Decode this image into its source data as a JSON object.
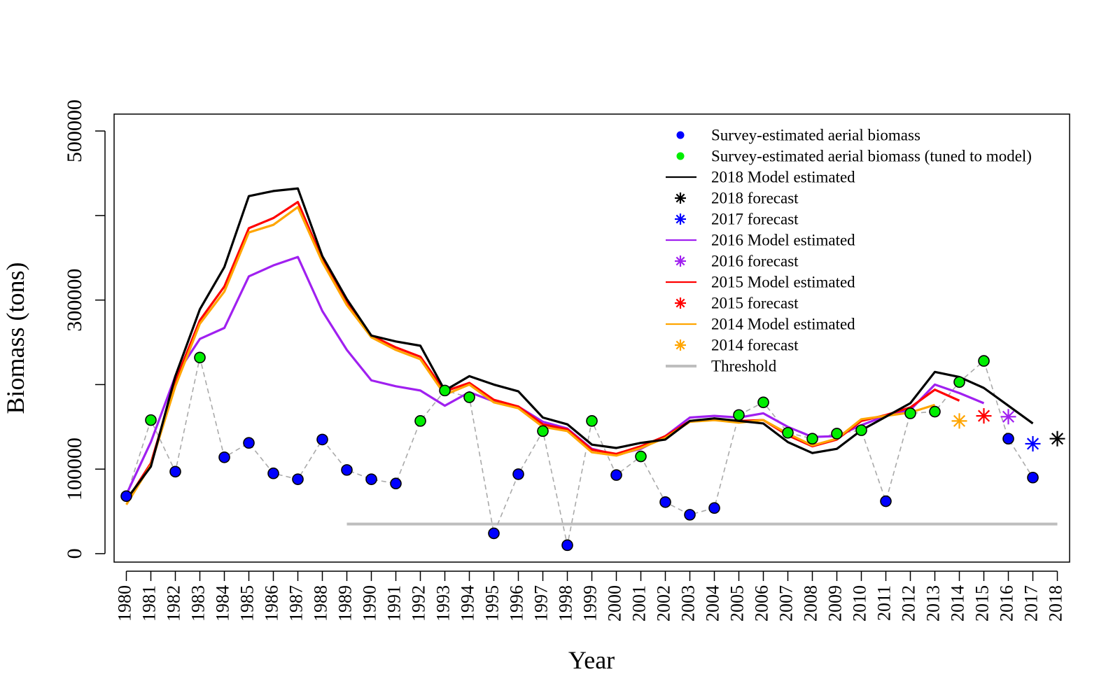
{
  "chart_data": {
    "type": "line",
    "title": "",
    "xlabel": "Year",
    "ylabel": "Biomass (tons)",
    "xlim": [
      1979.5,
      2018.5
    ],
    "ylim": [
      -10000,
      520000
    ],
    "x_ticks": [
      1980,
      1981,
      1982,
      1983,
      1984,
      1985,
      1986,
      1987,
      1988,
      1989,
      1990,
      1991,
      1992,
      1993,
      1994,
      1995,
      1996,
      1997,
      1998,
      1999,
      2000,
      2001,
      2002,
      2003,
      2004,
      2005,
      2006,
      2007,
      2008,
      2009,
      2010,
      2011,
      2012,
      2013,
      2014,
      2015,
      2016,
      2017,
      2018
    ],
    "y_ticks": [
      0,
      100000,
      200000,
      300000,
      400000,
      500000
    ],
    "y_tick_labels": [
      "0",
      "100000",
      "",
      "300000",
      "",
      "500000"
    ],
    "grid": false,
    "legend_position": "top-right",
    "legend": [
      {
        "label": "Survey-estimated aerial biomass",
        "kind": "point",
        "color": "#0000ff"
      },
      {
        "label": "Survey-estimated aerial biomass (tuned to model)",
        "kind": "point",
        "color": "#00ee00"
      },
      {
        "label": "2018 Model estimated",
        "kind": "line",
        "color": "#000000"
      },
      {
        "label": "2018 forecast",
        "kind": "star",
        "color": "#000000"
      },
      {
        "label": "2017 forecast",
        "kind": "star",
        "color": "#0000ff"
      },
      {
        "label": "2016 Model estimated",
        "kind": "line",
        "color": "#a020f0"
      },
      {
        "label": "2016 forecast",
        "kind": "star",
        "color": "#a020f0"
      },
      {
        "label": "2015 Model estimated",
        "kind": "line",
        "color": "#ff0000"
      },
      {
        "label": "2015 forecast",
        "kind": "star",
        "color": "#ff0000"
      },
      {
        "label": "2014 Model estimated",
        "kind": "line",
        "color": "#ffa500"
      },
      {
        "label": "2014 forecast",
        "kind": "star",
        "color": "#ffa500"
      },
      {
        "label": "Threshold",
        "kind": "thickline",
        "color": "#bebebe"
      }
    ],
    "survey_points": [
      {
        "x": 1980,
        "y": 68000,
        "tuned": false
      },
      {
        "x": 1981,
        "y": 158000,
        "tuned": true
      },
      {
        "x": 1982,
        "y": 97000,
        "tuned": false
      },
      {
        "x": 1983,
        "y": 232000,
        "tuned": true
      },
      {
        "x": 1984,
        "y": 114000,
        "tuned": false
      },
      {
        "x": 1985,
        "y": 131000,
        "tuned": false
      },
      {
        "x": 1986,
        "y": 95000,
        "tuned": false
      },
      {
        "x": 1987,
        "y": 88000,
        "tuned": false
      },
      {
        "x": 1988,
        "y": 135000,
        "tuned": false
      },
      {
        "x": 1989,
        "y": 99000,
        "tuned": false
      },
      {
        "x": 1990,
        "y": 88000,
        "tuned": false
      },
      {
        "x": 1991,
        "y": 83000,
        "tuned": false
      },
      {
        "x": 1992,
        "y": 157000,
        "tuned": true
      },
      {
        "x": 1993,
        "y": 193000,
        "tuned": true
      },
      {
        "x": 1994,
        "y": 185000,
        "tuned": true
      },
      {
        "x": 1995,
        "y": 24000,
        "tuned": false
      },
      {
        "x": 1996,
        "y": 94000,
        "tuned": false
      },
      {
        "x": 1997,
        "y": 145000,
        "tuned": true
      },
      {
        "x": 1998,
        "y": 10000,
        "tuned": false
      },
      {
        "x": 1999,
        "y": 157000,
        "tuned": true
      },
      {
        "x": 2000,
        "y": 93000,
        "tuned": false
      },
      {
        "x": 2001,
        "y": 115000,
        "tuned": true
      },
      {
        "x": 2002,
        "y": 61000,
        "tuned": false
      },
      {
        "x": 2003,
        "y": 46000,
        "tuned": false
      },
      {
        "x": 2004,
        "y": 54000,
        "tuned": false
      },
      {
        "x": 2005,
        "y": 164000,
        "tuned": true
      },
      {
        "x": 2006,
        "y": 179000,
        "tuned": true
      },
      {
        "x": 2007,
        "y": 143000,
        "tuned": true
      },
      {
        "x": 2008,
        "y": 136000,
        "tuned": true
      },
      {
        "x": 2009,
        "y": 142000,
        "tuned": true
      },
      {
        "x": 2010,
        "y": 146000,
        "tuned": true
      },
      {
        "x": 2011,
        "y": 62000,
        "tuned": false
      },
      {
        "x": 2012,
        "y": 166000,
        "tuned": true
      },
      {
        "x": 2013,
        "y": 168000,
        "tuned": true
      },
      {
        "x": 2014,
        "y": 203000,
        "tuned": true
      },
      {
        "x": 2015,
        "y": 228000,
        "tuned": true
      },
      {
        "x": 2016,
        "y": 136000,
        "tuned": false
      },
      {
        "x": 2017,
        "y": 90000,
        "tuned": false
      }
    ],
    "threshold": {
      "x_start": 1989,
      "x_end": 2018,
      "y": 35000,
      "color": "#bebebe"
    },
    "series": [
      {
        "name": "2018 Model estimated",
        "color": "#000000",
        "x_start": 1980,
        "values": [
          64000,
          103000,
          210000,
          289000,
          339000,
          423000,
          429000,
          432000,
          352000,
          301000,
          258000,
          251000,
          246000,
          193000,
          210000,
          200000,
          192000,
          161000,
          153000,
          129000,
          125000,
          131000,
          135000,
          157000,
          160000,
          157000,
          154000,
          132000,
          119000,
          124000,
          146000,
          162000,
          178000,
          215000,
          209000,
          196000,
          175000,
          154000
        ]
      },
      {
        "name": "2016 Model estimated",
        "color": "#a020f0",
        "x_start": 1980,
        "values": [
          70000,
          132000,
          210000,
          254000,
          267000,
          328000,
          341000,
          351000,
          287000,
          241000,
          205000,
          198000,
          193000,
          175000,
          191000,
          180000,
          174000,
          156000,
          148000,
          124000,
          117000,
          124000,
          139000,
          161000,
          163000,
          161000,
          166000,
          150000,
          138000,
          139000,
          152000,
          163000,
          170000,
          200000,
          190000,
          178000
        ]
      },
      {
        "name": "2015 Model estimated",
        "color": "#ff0000",
        "x_start": 1980,
        "values": [
          62000,
          107000,
          204000,
          276000,
          316000,
          385000,
          397000,
          416000,
          348000,
          297000,
          258000,
          244000,
          233000,
          192000,
          202000,
          182000,
          174000,
          153000,
          147000,
          123000,
          118000,
          127000,
          139000,
          157000,
          159000,
          157000,
          158000,
          140000,
          127000,
          135000,
          157000,
          164000,
          173000,
          194000,
          181000
        ]
      },
      {
        "name": "2014 Model estimated",
        "color": "#ffa500",
        "x_start": 1980,
        "values": [
          58000,
          105000,
          198000,
          272000,
          310000,
          380000,
          389000,
          410000,
          345000,
          294000,
          256000,
          241000,
          230000,
          188000,
          200000,
          179000,
          172000,
          150000,
          145000,
          120000,
          116000,
          125000,
          137000,
          156000,
          158000,
          155000,
          158000,
          142000,
          128000,
          136000,
          159000,
          163000,
          167000,
          176000
        ]
      }
    ],
    "forecasts": [
      {
        "name": "2014 forecast",
        "x": 2014,
        "y": 157000,
        "color": "#ffa500"
      },
      {
        "name": "2015 forecast",
        "x": 2015,
        "y": 163000,
        "color": "#ff0000"
      },
      {
        "name": "2016 forecast",
        "x": 2016,
        "y": 162000,
        "color": "#a020f0"
      },
      {
        "name": "2017 forecast",
        "x": 2017,
        "y": 130000,
        "color": "#0000ff"
      },
      {
        "name": "2018 forecast",
        "x": 2018,
        "y": 136000,
        "color": "#000000"
      }
    ]
  }
}
